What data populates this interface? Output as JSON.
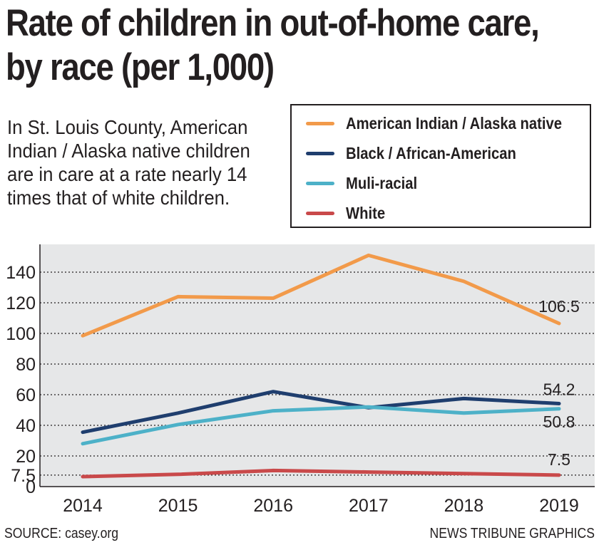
{
  "header": {
    "title_line1": "Rate of children in out-of-home care,",
    "title_line2": "by race (per 1,000)",
    "subtitle": "In St. Louis County, American Indian / Alaska native children are in care at a rate nearly 14 times that of white children."
  },
  "footer": {
    "source": "SOURCE: casey.org",
    "credit": "NEWS TRIBUNE GRAPHICS"
  },
  "chart_data": {
    "type": "line",
    "title": "Rate of children in out-of-home care, by race (per 1,000)",
    "xlabel": "",
    "ylabel": "",
    "ylim": [
      0,
      155
    ],
    "grid": true,
    "legend_position": "top-right",
    "x": [
      "2014",
      "2015",
      "2016",
      "2017",
      "2018",
      "2019"
    ],
    "y_ticks": [
      {
        "value": 0,
        "label": "0"
      },
      {
        "value": 7.5,
        "label": "7.5"
      },
      {
        "value": 20,
        "label": "20"
      },
      {
        "value": 40,
        "label": "40"
      },
      {
        "value": 60,
        "label": "60"
      },
      {
        "value": 80,
        "label": "80"
      },
      {
        "value": 100,
        "label": "100"
      },
      {
        "value": 120,
        "label": "120"
      },
      {
        "value": 140,
        "label": "140"
      }
    ],
    "series": [
      {
        "name": "American Indian / Alaska native",
        "color": "#f29a4a",
        "values": [
          98.5,
          124,
          123,
          151,
          134,
          106.5
        ],
        "end_label": "106.5"
      },
      {
        "name": "Black / African-American",
        "color": "#1f3e6e",
        "values": [
          35.5,
          48,
          62,
          51.5,
          57.5,
          54.2
        ],
        "end_label": "54.2"
      },
      {
        "name": "Muli-racial",
        "color": "#4db1c8",
        "values": [
          28,
          40.5,
          49.5,
          52,
          48,
          50.8
        ],
        "end_label": "50.8"
      },
      {
        "name": "White",
        "color": "#c9494a",
        "values": [
          6.5,
          8,
          10.5,
          9.5,
          8.5,
          7.5
        ],
        "end_label": "7.5"
      }
    ]
  }
}
